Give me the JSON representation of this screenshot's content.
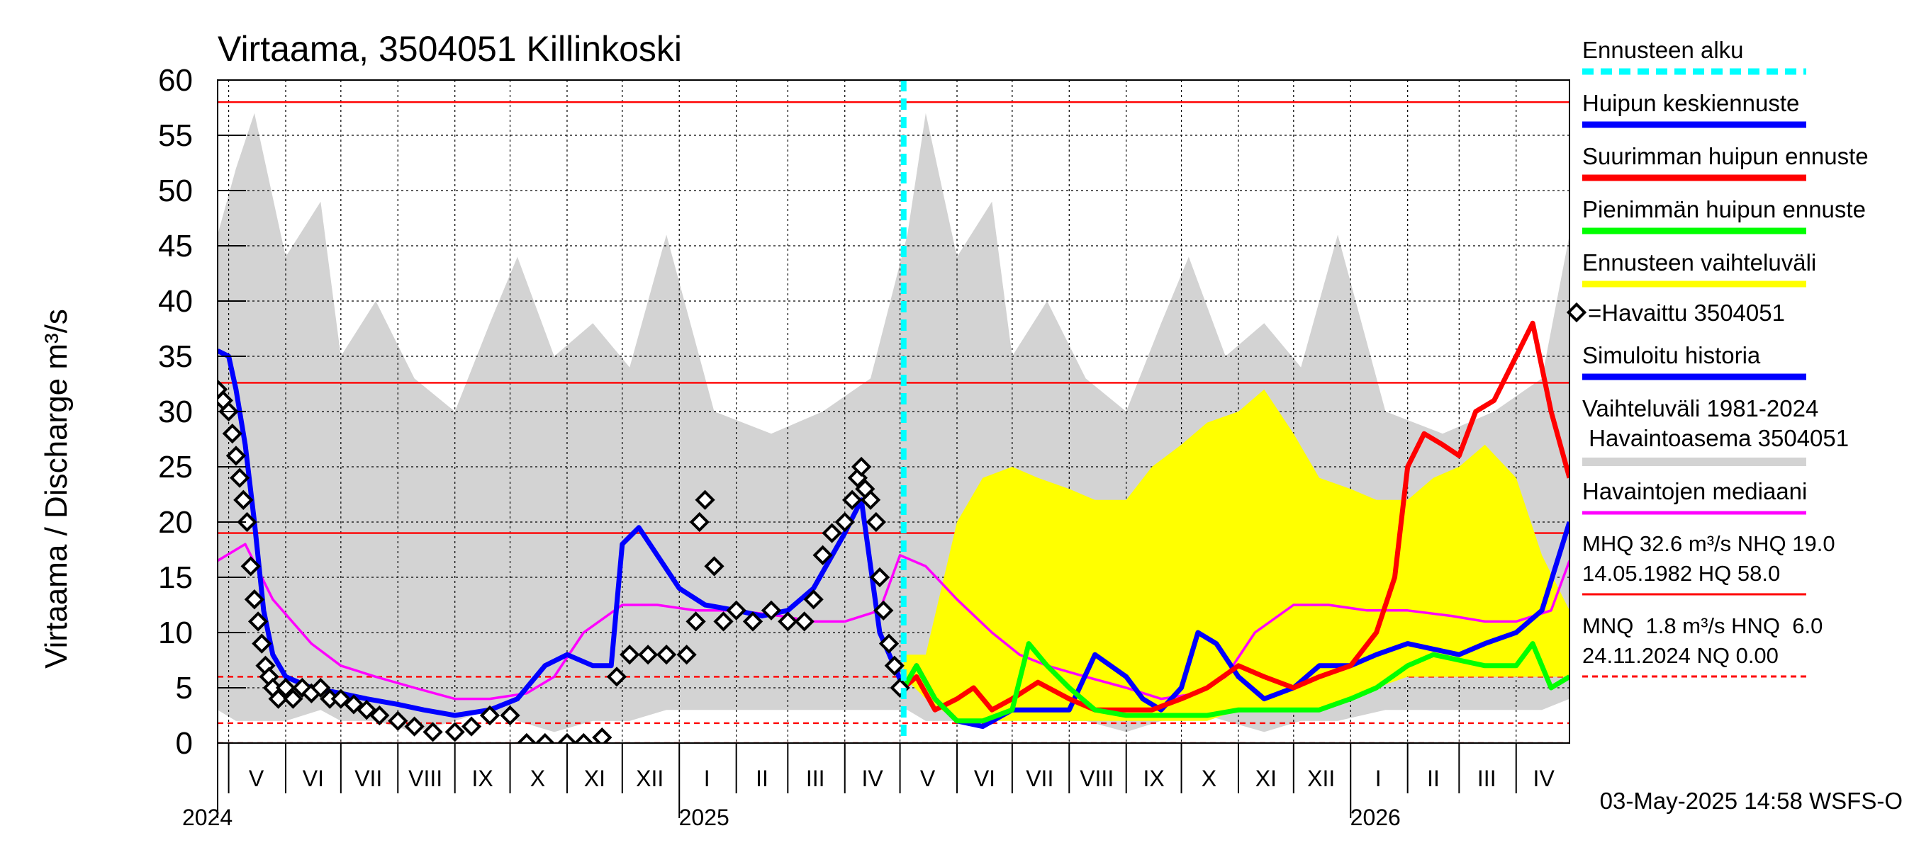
{
  "chart_data": {
    "type": "line",
    "title": "Virtaama, 3504051 Killinkoski",
    "ylabel": "Virtaama / Discharge    m³/s",
    "ylim": [
      0,
      60
    ],
    "yticks": [
      0,
      5,
      10,
      15,
      20,
      25,
      30,
      35,
      40,
      45,
      50,
      55,
      60
    ],
    "xlim": [
      "2024-04-25",
      "2026-04-30"
    ],
    "month_labels": [
      {
        "label": "V",
        "date": "2024-05-16"
      },
      {
        "label": "VI",
        "date": "2024-06-16"
      },
      {
        "label": "VII",
        "date": "2024-07-16"
      },
      {
        "label": "VIII",
        "date": "2024-08-16"
      },
      {
        "label": "IX",
        "date": "2024-09-16"
      },
      {
        "label": "X",
        "date": "2024-10-16"
      },
      {
        "label": "XI",
        "date": "2024-11-16"
      },
      {
        "label": "XII",
        "date": "2024-12-16"
      },
      {
        "label": "I",
        "date": "2025-01-16"
      },
      {
        "label": "II",
        "date": "2025-02-15"
      },
      {
        "label": "III",
        "date": "2025-03-16"
      },
      {
        "label": "IV",
        "date": "2025-04-16"
      },
      {
        "label": "V",
        "date": "2025-05-16"
      },
      {
        "label": "VI",
        "date": "2025-06-16"
      },
      {
        "label": "VII",
        "date": "2025-07-16"
      },
      {
        "label": "VIII",
        "date": "2025-08-16"
      },
      {
        "label": "IX",
        "date": "2025-09-16"
      },
      {
        "label": "X",
        "date": "2025-10-16"
      },
      {
        "label": "XI",
        "date": "2025-11-16"
      },
      {
        "label": "XII",
        "date": "2025-12-16"
      },
      {
        "label": "I",
        "date": "2026-01-16"
      },
      {
        "label": "II",
        "date": "2026-02-15"
      },
      {
        "label": "III",
        "date": "2026-03-16"
      },
      {
        "label": "IV",
        "date": "2026-04-16"
      }
    ],
    "year_labels": [
      {
        "label": "2024",
        "date": "2024-05-01"
      },
      {
        "label": "2025",
        "date": "2025-01-01"
      },
      {
        "label": "2026",
        "date": "2026-01-01"
      }
    ],
    "forecast_start": "2025-05-03",
    "reference_lines": [
      {
        "value": 58.0,
        "style": "solid"
      },
      {
        "value": 32.6,
        "style": "solid"
      },
      {
        "value": 19.0,
        "style": "solid"
      },
      {
        "value": 6.0,
        "style": "dashed"
      },
      {
        "value": 1.8,
        "style": "dashed"
      },
      {
        "value": 0.0,
        "style": "dashed"
      }
    ],
    "range_band": {
      "name": "Vaihteluväli 1981-2024 Havaintoasema 3504051",
      "x": [
        "2024-04-25",
        "2024-05-05",
        "2024-05-15",
        "2024-06-01",
        "2024-06-20",
        "2024-07-01",
        "2024-07-20",
        "2024-08-10",
        "2024-09-01",
        "2024-09-20",
        "2024-10-05",
        "2024-10-25",
        "2024-11-15",
        "2024-12-05",
        "2024-12-25",
        "2025-01-20",
        "2025-02-20",
        "2025-03-20",
        "2025-04-15",
        "2025-05-05",
        "2025-05-15",
        "2025-06-01",
        "2025-06-20",
        "2025-07-01",
        "2025-07-20",
        "2025-08-10",
        "2025-09-01",
        "2025-09-20",
        "2025-10-05",
        "2025-10-25",
        "2025-11-15",
        "2025-12-05",
        "2025-12-25",
        "2026-01-20",
        "2026-02-20",
        "2026-03-20",
        "2026-04-15",
        "2026-04-30"
      ],
      "low": [
        3,
        2,
        2,
        2,
        3,
        2,
        2,
        1,
        2,
        3,
        2,
        1,
        2,
        2,
        3,
        3,
        3,
        3,
        3,
        3,
        2,
        2,
        2,
        3,
        2,
        2,
        1,
        2,
        3,
        2,
        1,
        2,
        2,
        3,
        3,
        3,
        3,
        4
      ],
      "high": [
        46,
        52,
        57,
        44,
        49,
        35,
        40,
        33,
        30,
        38,
        44,
        35,
        38,
        34,
        46,
        30,
        28,
        30,
        33,
        46,
        57,
        44,
        49,
        35,
        40,
        33,
        30,
        38,
        44,
        35,
        38,
        34,
        46,
        30,
        28,
        30,
        33,
        46
      ]
    },
    "series": [
      {
        "name": "Ennusteen vaihteluväli",
        "kind": "band",
        "color": "#ffff00",
        "x": [
          "2025-05-03",
          "2025-05-15",
          "2025-06-01",
          "2025-06-15",
          "2025-07-01",
          "2025-07-15",
          "2025-08-01",
          "2025-08-15",
          "2025-09-01",
          "2025-09-15",
          "2025-10-01",
          "2025-10-15",
          "2025-11-01",
          "2025-11-15",
          "2025-12-01",
          "2025-12-15",
          "2026-01-01",
          "2026-01-15",
          "2026-02-01",
          "2026-02-15",
          "2026-03-01",
          "2026-03-15",
          "2026-04-01",
          "2026-04-15",
          "2026-04-30"
        ],
        "low": [
          6,
          4,
          2,
          2,
          2,
          2,
          2,
          2,
          2,
          2,
          2,
          2,
          3,
          3,
          3,
          3,
          4,
          5,
          6,
          6,
          6,
          6,
          6,
          6,
          6
        ],
        "high": [
          8,
          8,
          20,
          24,
          25,
          24,
          23,
          22,
          22,
          25,
          27,
          29,
          30,
          32,
          28,
          24,
          23,
          22,
          22,
          24,
          25,
          27,
          24,
          17,
          12
        ]
      },
      {
        "name": "Havaintojen mediaani",
        "color": "#ff00ff",
        "x": [
          "2024-04-25",
          "2024-05-10",
          "2024-05-25",
          "2024-06-15",
          "2024-07-01",
          "2024-07-20",
          "2024-08-10",
          "2024-09-01",
          "2024-09-20",
          "2024-10-10",
          "2024-10-25",
          "2024-11-10",
          "2024-12-01",
          "2024-12-20",
          "2025-01-10",
          "2025-02-01",
          "2025-02-25",
          "2025-03-15",
          "2025-04-01",
          "2025-04-20",
          "2025-05-01",
          "2025-05-15",
          "2025-06-01",
          "2025-06-20",
          "2025-07-05",
          "2025-07-20",
          "2025-08-10",
          "2025-09-01",
          "2025-09-20",
          "2025-10-10",
          "2025-10-25",
          "2025-11-10",
          "2025-12-01",
          "2025-12-20",
          "2026-01-10",
          "2026-02-01",
          "2026-02-25",
          "2026-03-15",
          "2026-04-01",
          "2026-04-20",
          "2026-04-30"
        ],
        "values": [
          16.5,
          18,
          13,
          9,
          7,
          6,
          5,
          4,
          4,
          4.5,
          6,
          10,
          12.5,
          12.5,
          12,
          12,
          11.5,
          11,
          11,
          12,
          17,
          16,
          13,
          10,
          8,
          7,
          6,
          5,
          4,
          4.5,
          6,
          10,
          12.5,
          12.5,
          12,
          12,
          11.5,
          11,
          11,
          12,
          16.5
        ]
      },
      {
        "name": "Simuloitu historia",
        "color": "#0000ff",
        "x": [
          "2024-04-25",
          "2024-05-01",
          "2024-05-05",
          "2024-05-10",
          "2024-05-15",
          "2024-05-20",
          "2024-05-25",
          "2024-06-01",
          "2024-06-15",
          "2024-07-01",
          "2024-07-15",
          "2024-08-01",
          "2024-08-15",
          "2024-09-01",
          "2024-09-20",
          "2024-10-05",
          "2024-10-20",
          "2024-11-01",
          "2024-11-15",
          "2024-11-25",
          "2024-12-01",
          "2024-12-10",
          "2024-12-20",
          "2025-01-01",
          "2025-01-15",
          "2025-02-01",
          "2025-02-15",
          "2025-03-01",
          "2025-03-15",
          "2025-04-01",
          "2025-04-10",
          "2025-04-20",
          "2025-05-03"
        ],
        "values": [
          35.5,
          35,
          32,
          27,
          20,
          12,
          8,
          6,
          5,
          4.5,
          4,
          3.5,
          3,
          2.5,
          3,
          4,
          7,
          8,
          7,
          7,
          18,
          19.5,
          17,
          14,
          12.5,
          12,
          11.5,
          12,
          14,
          19,
          22,
          10,
          5
        ]
      },
      {
        "name": "Huipun keskiennuste",
        "color": "#0000ff",
        "x": [
          "2025-05-03",
          "2025-05-10",
          "2025-05-20",
          "2025-06-01",
          "2025-06-15",
          "2025-07-01",
          "2025-07-15",
          "2025-08-01",
          "2025-08-15",
          "2025-09-01",
          "2025-09-10",
          "2025-09-20",
          "2025-10-01",
          "2025-10-10",
          "2025-10-20",
          "2025-11-01",
          "2025-11-15",
          "2025-12-01",
          "2025-12-15",
          "2026-01-01",
          "2026-01-15",
          "2026-02-01",
          "2026-02-15",
          "2026-03-01",
          "2026-03-15",
          "2026-04-01",
          "2026-04-15",
          "2026-04-30"
        ],
        "values": [
          5,
          7,
          4,
          2,
          1.5,
          3,
          3,
          3,
          8,
          6,
          4,
          3,
          5,
          10,
          9,
          6,
          4,
          5,
          7,
          7,
          8,
          9,
          8.5,
          8,
          9,
          10,
          12,
          20
        ]
      },
      {
        "name": "Suurimman huipun ennuste",
        "color": "#ff0000",
        "x": [
          "2025-05-03",
          "2025-05-10",
          "2025-05-20",
          "2025-06-01",
          "2025-06-10",
          "2025-06-20",
          "2025-07-01",
          "2025-07-15",
          "2025-08-01",
          "2025-08-15",
          "2025-09-01",
          "2025-09-15",
          "2025-10-01",
          "2025-10-15",
          "2025-11-01",
          "2025-11-15",
          "2025-12-01",
          "2025-12-15",
          "2026-01-01",
          "2026-01-15",
          "2026-01-25",
          "2026-02-01",
          "2026-02-10",
          "2026-02-20",
          "2026-03-01",
          "2026-03-10",
          "2026-03-20",
          "2026-04-01",
          "2026-04-10",
          "2026-04-20",
          "2026-04-30"
        ],
        "values": [
          5,
          6,
          3,
          4,
          5,
          3,
          4,
          5.5,
          4,
          3,
          3,
          3,
          4,
          5,
          7,
          6,
          5,
          6,
          7,
          10,
          15,
          25,
          28,
          27,
          26,
          30,
          31,
          35,
          38,
          30,
          24
        ]
      },
      {
        "name": "Pienimmän huipun ennuste",
        "color": "#00ff00",
        "x": [
          "2025-05-03",
          "2025-05-10",
          "2025-05-20",
          "2025-06-01",
          "2025-06-15",
          "2025-07-01",
          "2025-07-10",
          "2025-07-20",
          "2025-08-01",
          "2025-08-15",
          "2025-09-01",
          "2025-09-15",
          "2025-10-01",
          "2025-10-15",
          "2025-11-01",
          "2025-11-15",
          "2025-12-01",
          "2025-12-15",
          "2026-01-01",
          "2026-01-15",
          "2026-02-01",
          "2026-02-15",
          "2026-03-01",
          "2026-03-15",
          "2026-04-01",
          "2026-04-10",
          "2026-04-20",
          "2026-04-30"
        ],
        "values": [
          5,
          7,
          4,
          2,
          2,
          3,
          9,
          7,
          5,
          3,
          2.5,
          2.5,
          2.5,
          2.5,
          3,
          3,
          3,
          3,
          4,
          5,
          7,
          8,
          7.5,
          7,
          7,
          9,
          5,
          6
        ]
      },
      {
        "name": "=Havaittu 3504051",
        "kind": "points",
        "color": "#000000",
        "x": [
          "2024-04-25",
          "2024-04-28",
          "2024-05-01",
          "2024-05-03",
          "2024-05-05",
          "2024-05-07",
          "2024-05-09",
          "2024-05-11",
          "2024-05-13",
          "2024-05-15",
          "2024-05-17",
          "2024-05-19",
          "2024-05-21",
          "2024-05-23",
          "2024-05-25",
          "2024-05-28",
          "2024-06-01",
          "2024-06-05",
          "2024-06-10",
          "2024-06-15",
          "2024-06-20",
          "2024-06-25",
          "2024-07-01",
          "2024-07-08",
          "2024-07-15",
          "2024-07-22",
          "2024-08-01",
          "2024-08-10",
          "2024-08-20",
          "2024-09-01",
          "2024-09-10",
          "2024-09-20",
          "2024-10-01",
          "2024-10-10",
          "2024-10-20",
          "2024-11-01",
          "2024-11-10",
          "2024-11-20",
          "2024-11-28",
          "2024-12-05",
          "2024-12-15",
          "2024-12-25",
          "2025-01-05",
          "2025-01-10",
          "2025-01-12",
          "2025-01-15",
          "2025-01-20",
          "2025-01-25",
          "2025-02-01",
          "2025-02-10",
          "2025-02-20",
          "2025-03-01",
          "2025-03-10",
          "2025-03-15",
          "2025-03-20",
          "2025-03-25",
          "2025-04-01",
          "2025-04-05",
          "2025-04-08",
          "2025-04-10",
          "2025-04-12",
          "2025-04-15",
          "2025-04-18",
          "2025-04-20",
          "2025-04-22",
          "2025-04-25",
          "2025-04-28",
          "2025-05-01"
        ],
        "values": [
          32,
          31,
          30,
          28,
          26,
          24,
          22,
          20,
          16,
          13,
          11,
          9,
          7,
          6,
          5,
          4,
          5,
          4,
          5,
          4.5,
          5,
          4,
          4,
          3.5,
          3,
          2.5,
          2,
          1.5,
          1,
          1,
          1.5,
          2.5,
          2.5,
          0,
          0,
          0,
          0,
          0.5,
          6,
          8,
          8,
          8,
          8,
          11,
          20,
          22,
          16,
          11,
          12,
          11,
          12,
          11,
          11,
          13,
          17,
          19,
          20,
          22,
          24,
          25,
          23,
          22,
          20,
          15,
          12,
          9,
          7,
          5
        ]
      }
    ]
  },
  "legend": {
    "ennusteen_alku": "Ennusteen alku",
    "huipun_keskiennuste": "Huipun keskiennuste",
    "suurimman": "Suurimman huipun ennuste",
    "pienimman": "Pienimmän huipun ennuste",
    "vaihteluvali": "Ennusteen vaihteluväli",
    "havaittu": "=Havaittu 3504051",
    "simuloitu": "Simuloitu historia",
    "vaihteluvali_hist_1": "Vaihteluväli 1981-2024",
    "vaihteluvali_hist_2": " Havaintoasema 3504051",
    "mediaani": "Havaintojen mediaani",
    "stats_1": "MHQ 32.6 m³/s NHQ 19.0",
    "stats_2": "14.05.1982 HQ 58.0",
    "stats_3": "MNQ  1.8 m³/s HNQ  6.0",
    "stats_4": "24.11.2024 NQ 0.00"
  },
  "footer": "03-May-2025 14:58 WSFS-O",
  "colors": {
    "range_band": "#d3d3d3",
    "forecast_band": "#ffff00",
    "forecast_start": "#00ffff",
    "ref_lines": "#ff0000",
    "median": "#ff00ff",
    "simulated": "#0000ff",
    "mean_peak": "#0000ff",
    "max_peak": "#ff0000",
    "min_peak": "#00ff00",
    "observed": "#000000"
  }
}
